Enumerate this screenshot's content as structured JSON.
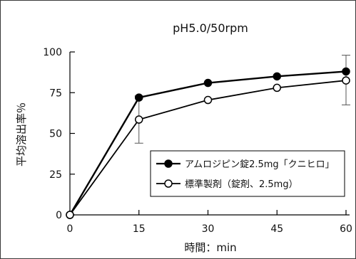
{
  "chart_data": {
    "type": "line",
    "title": "pH5.0/50rpm",
    "xlabel": "時間：min",
    "ylabel": "平均溶出率％",
    "x": [
      0,
      15,
      30,
      45,
      60
    ],
    "xticks": [
      "0",
      "15",
      "30",
      "45",
      "60"
    ],
    "yticks": [
      "0",
      "25",
      "50",
      "75",
      "100"
    ],
    "xlim": [
      0,
      60
    ],
    "ylim": [
      0,
      100
    ],
    "grid": false,
    "legend_position": "lower-right",
    "series": [
      {
        "name": "アムロジピン錠2.5mg「クニヒロ」",
        "marker": "filled-circle",
        "color": "#000000",
        "values": [
          0,
          72,
          81,
          85,
          88
        ]
      },
      {
        "name": "標準製剤（錠剤、2.5mg）",
        "marker": "open-circle",
        "color": "#000000",
        "values": [
          0,
          58.5,
          70.5,
          78,
          82.5
        ],
        "error_bars": [
          {
            "x": 15,
            "low": 44,
            "high": 73
          },
          {
            "x": 60,
            "low": 67.5,
            "high": 98
          }
        ]
      }
    ]
  }
}
